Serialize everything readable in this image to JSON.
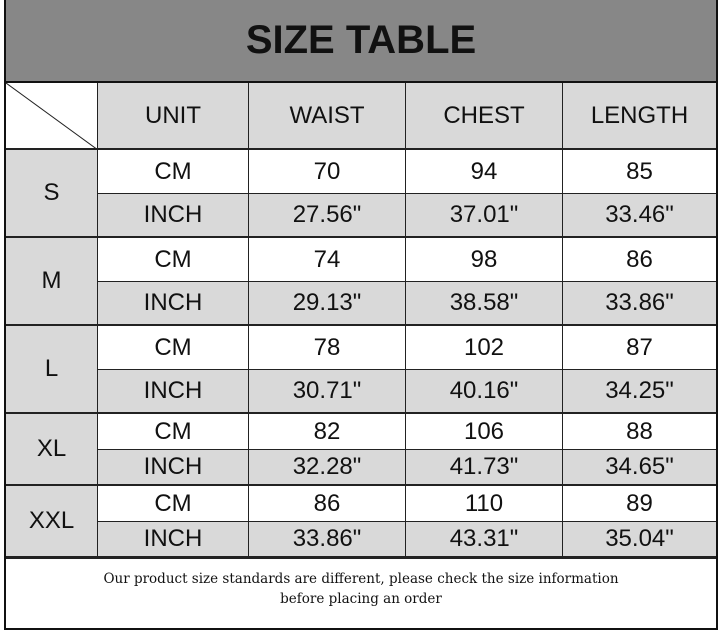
{
  "title": "SIZE TABLE",
  "headers": [
    "UNIT",
    "WAIST",
    "CHEST",
    "LENGTH"
  ],
  "rows": [
    {
      "size": "S",
      "cm": [
        "70",
        "94",
        "85"
      ],
      "inch": [
        "27.56\"",
        "37.01\"",
        "33.46\""
      ]
    },
    {
      "size": "M",
      "cm": [
        "74",
        "98",
        "86"
      ],
      "inch": [
        "29.13\"",
        "38.58\"",
        "33.86\""
      ]
    },
    {
      "size": "L",
      "cm": [
        "78",
        "102",
        "87"
      ],
      "inch": [
        "30.71\"",
        "40.16\"",
        "34.25\""
      ]
    },
    {
      "size": "XL",
      "cm": [
        "82",
        "106",
        "88"
      ],
      "inch": [
        "32.28\"",
        "41.73\"",
        "34.65\""
      ]
    },
    {
      "size": "XXL",
      "cm": [
        "86",
        "110",
        "89"
      ],
      "inch": [
        "33.86\"",
        "43.31\"",
        "35.04\""
      ]
    }
  ],
  "units": {
    "cm": "CM",
    "inch": "INCH"
  },
  "footer": {
    "line1": "Our product size standards are different, please check the size information",
    "line2": "before placing an order"
  },
  "colors": {
    "title_bg": "#878787",
    "cell_gray": "#d9d9d9"
  }
}
